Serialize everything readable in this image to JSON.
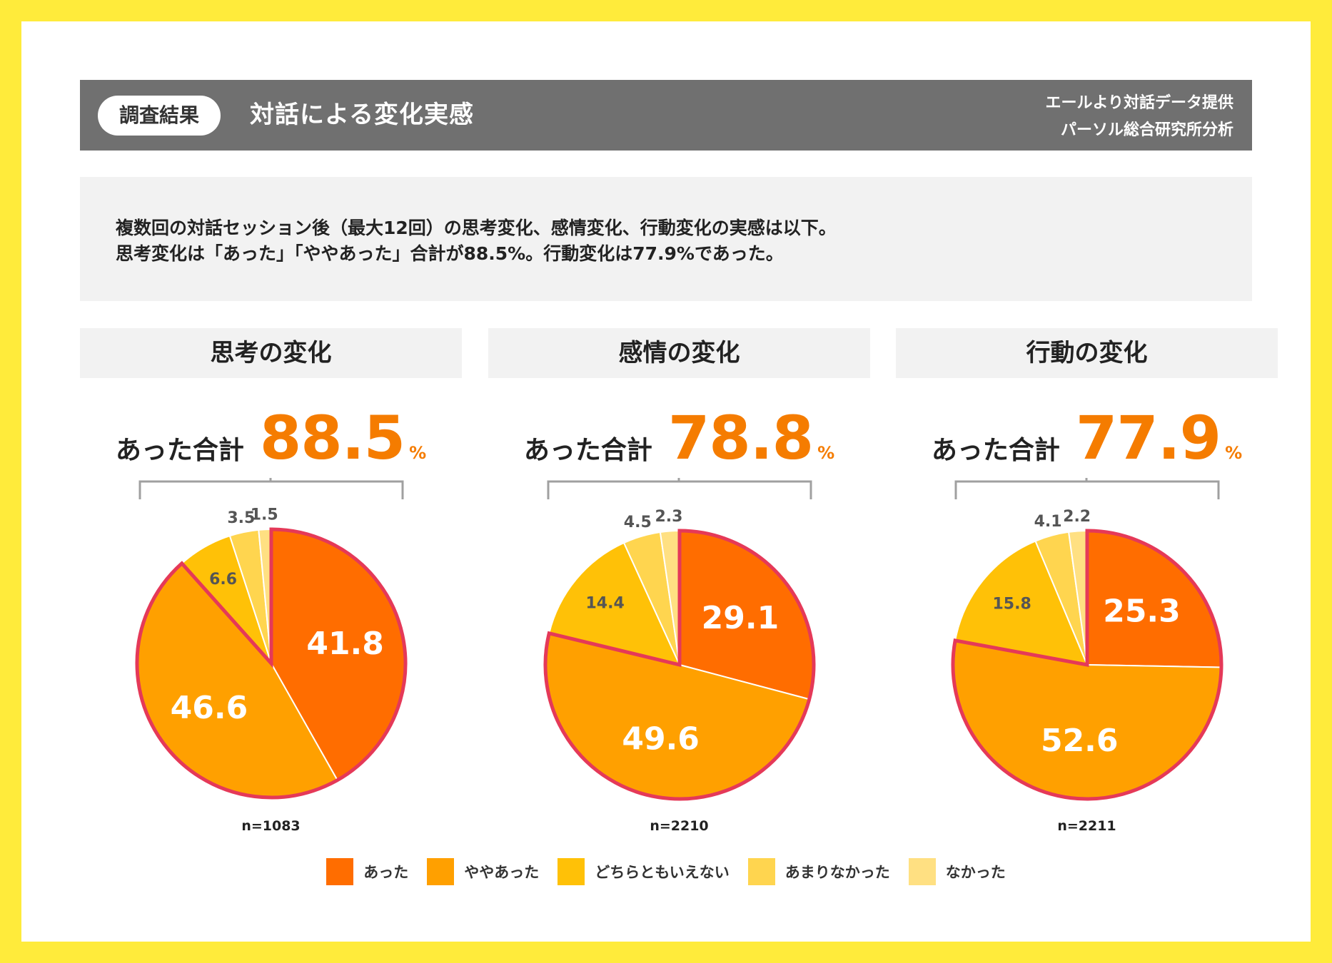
{
  "header": {
    "badge": "調査結果",
    "title": "対話による変化実感",
    "credit_line1": "エールより対話データ提供",
    "credit_line2": "パーソル総合研究所分析"
  },
  "summary": {
    "line1": "複数回の対話セッション後（最大12回）の思考変化、感情変化、行動変化の実感は以下。",
    "line2": "思考変化は「あった」「ややあった」合計が88.5%。行動変化は77.9%であった。"
  },
  "total_label": "あった合計",
  "total_unit": "%",
  "colors": {
    "あった": "#ff6d00",
    "ややあった": "#ffa000",
    "どちらともいえない": "#ffc107",
    "あまりなかった": "#ffd54f",
    "なかった": "#ffe082",
    "highlight": "#e53958"
  },
  "chart_data": [
    {
      "type": "pie",
      "title": "思考の変化",
      "total": "88.5",
      "n": "n=1083",
      "categories": [
        "あった",
        "ややあった",
        "どちらともいえない",
        "あまりなかった",
        "なかった"
      ],
      "values": [
        41.8,
        46.6,
        6.6,
        3.5,
        1.5
      ]
    },
    {
      "type": "pie",
      "title": "感情の変化",
      "total": "78.8",
      "n": "n=2210",
      "categories": [
        "あった",
        "ややあった",
        "どちらともいえない",
        "あまりなかった",
        "なかった"
      ],
      "values": [
        29.1,
        49.6,
        14.4,
        4.5,
        2.3
      ]
    },
    {
      "type": "pie",
      "title": "行動の変化",
      "total": "77.9",
      "n": "n=2211",
      "categories": [
        "あった",
        "ややあった",
        "どちらともいえない",
        "あまりなかった",
        "なかった"
      ],
      "values": [
        25.3,
        52.6,
        15.8,
        4.1,
        2.2
      ]
    }
  ],
  "legend": [
    "あった",
    "ややあった",
    "どちらともいえない",
    "あまりなかった",
    "なかった"
  ]
}
